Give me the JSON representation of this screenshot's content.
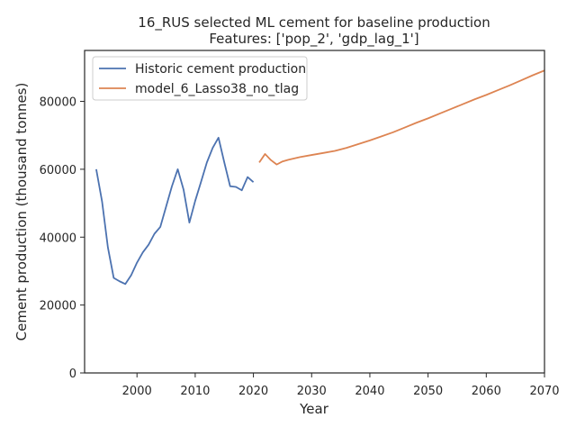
{
  "chart_data": {
    "type": "line",
    "title": "16_RUS selected ML cement for baseline production",
    "subtitle": "Features: ['pop_2', 'gdp_lag_1']",
    "xlabel": "Year",
    "ylabel": "Cement production (thousand tonnes)",
    "xlim": [
      1991,
      2070
    ],
    "ylim": [
      0,
      95000
    ],
    "x_ticks": [
      2000,
      2010,
      2020,
      2030,
      2040,
      2050,
      2060,
      2070
    ],
    "y_ticks": [
      0,
      20000,
      40000,
      60000,
      80000
    ],
    "grid": false,
    "legend_position": "top-left",
    "series": [
      {
        "name": "Historic cement production",
        "color": "#4c72b0",
        "x": [
          1993,
          1994,
          1995,
          1996,
          1997,
          1998,
          1999,
          2000,
          2001,
          2002,
          2003,
          2004,
          2005,
          2006,
          2007,
          2008,
          2009,
          2010,
          2011,
          2012,
          2013,
          2014,
          2015,
          2016,
          2017,
          2018,
          2019,
          2020
        ],
        "y": [
          60000,
          50500,
          37000,
          28000,
          27000,
          26200,
          28800,
          32500,
          35500,
          37800,
          41000,
          43000,
          49000,
          55000,
          60000,
          54000,
          44300,
          50700,
          56300,
          62000,
          66300,
          69300,
          62000,
          55000,
          54800,
          53800,
          57700,
          56200
        ]
      },
      {
        "name": "model_6_Lasso38_no_tlag",
        "color": "#dd8452",
        "x": [
          2021,
          2022,
          2023,
          2024,
          2025,
          2026,
          2028,
          2030,
          2032,
          2034,
          2036,
          2038,
          2040,
          2042,
          2044,
          2046,
          2048,
          2050,
          2052,
          2054,
          2056,
          2058,
          2060,
          2062,
          2064,
          2066,
          2068,
          2070
        ],
        "y": [
          62000,
          64500,
          62700,
          61400,
          62300,
          62800,
          63600,
          64200,
          64800,
          65400,
          66300,
          67400,
          68500,
          69700,
          70900,
          72300,
          73700,
          75000,
          76400,
          77800,
          79200,
          80600,
          81900,
          83300,
          84700,
          86200,
          87700,
          89100
        ]
      }
    ]
  }
}
